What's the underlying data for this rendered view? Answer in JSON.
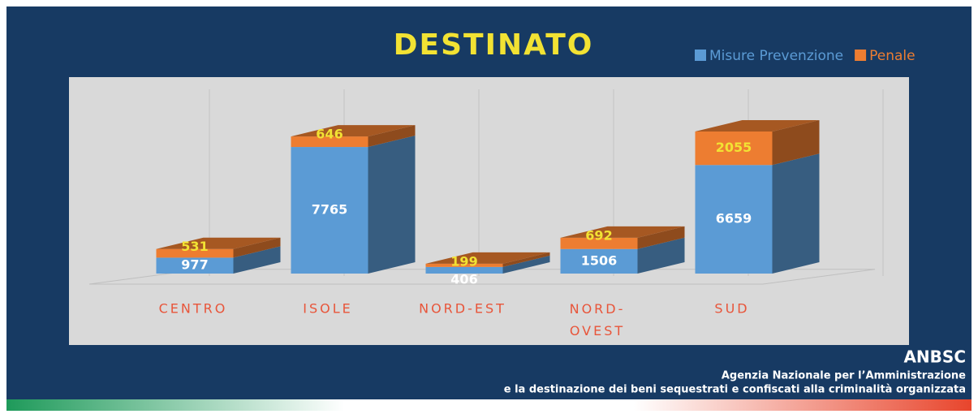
{
  "chart_data": {
    "type": "bar",
    "stacked": true,
    "title": "DESTINATO",
    "categories": [
      "CENTRO",
      "ISOLE",
      "NORD-EST",
      "NORD-OVEST",
      "SUD"
    ],
    "series": [
      {
        "name": "Misure Prevenzione",
        "color": "#5b9bd5",
        "values": [
          977,
          7765,
          406,
          1506,
          6659
        ]
      },
      {
        "name": "Penale",
        "color": "#ed7d31",
        "values": [
          531,
          646,
          199,
          692,
          2055
        ]
      }
    ],
    "legend": "top-right"
  },
  "footer": {
    "title": "ANBSC",
    "line1": "Agenzia Nazionale per l’Amministrazione",
    "line2": "e la destinazione dei beni sequestrati e confiscati alla criminalità organizzata"
  }
}
